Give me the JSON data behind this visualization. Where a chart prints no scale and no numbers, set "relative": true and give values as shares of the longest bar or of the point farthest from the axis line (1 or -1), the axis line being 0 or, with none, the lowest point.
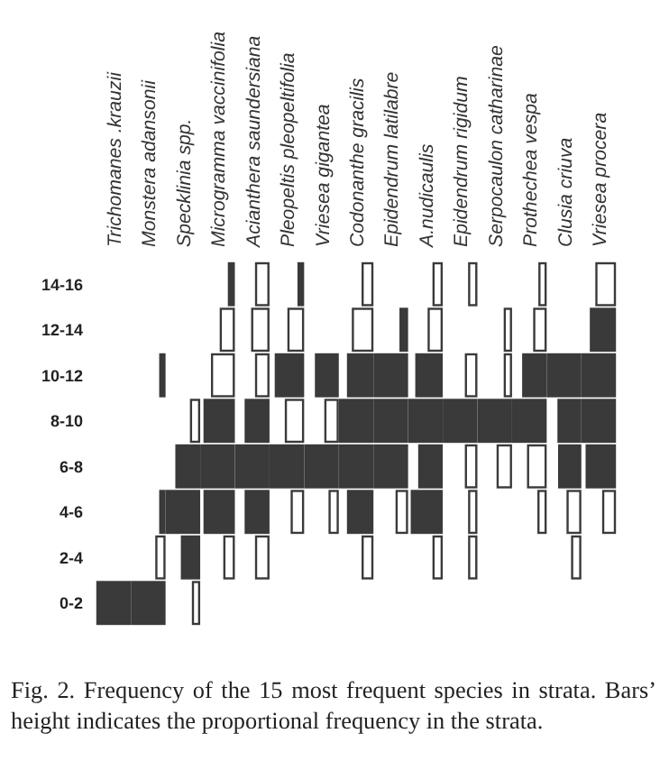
{
  "chart_data": [
    {
      "type": "bar",
      "orientation": "horizontal",
      "relative": true,
      "tick_labels": "y",
      "title": "Trichomanes .krauzii",
      "categories": [
        "14-16",
        "12-14",
        "10-12",
        "8-10",
        "6-8",
        "4-6",
        "2-4",
        "0-2"
      ],
      "values": [
        null,
        null,
        null,
        null,
        null,
        null,
        null,
        1
      ],
      "colors": [
        null,
        null,
        null,
        null,
        null,
        null,
        null,
        "#3a3a3a"
      ],
      "annotations": [
        "Fig. 2. Frequency of the 15 most frequent species in strata. Bars’ height indicates the proportional frequency in the strata."
      ]
    },
    {
      "type": "bar",
      "orientation": "horizontal",
      "relative": true,
      "tick_labels": false,
      "title": "Monstera adansonii",
      "categories": [
        "14-16",
        "12-14",
        "10-12",
        "8-10",
        "6-8",
        "4-6",
        "2-4",
        "0-2"
      ],
      "values": [
        null,
        null,
        0.13,
        null,
        null,
        0.13,
        0.25,
        1
      ],
      "colors": [
        null,
        null,
        "#3a3a3a",
        null,
        null,
        "#3a3a3a",
        "#ffffff",
        "#3a3a3a"
      ]
    },
    {
      "type": "bar",
      "orientation": "horizontal",
      "relative": true,
      "tick_labels": false,
      "title": "Specklinia spp.",
      "categories": [
        "14-16",
        "12-14",
        "10-12",
        "8-10",
        "6-8",
        "4-6",
        "2-4",
        "0-2"
      ],
      "values": [
        null,
        null,
        null,
        0.25,
        0.7,
        1,
        0.53,
        0.19
      ],
      "colors": [
        null,
        null,
        null,
        "#ffffff",
        "#3a3a3a",
        "#3a3a3a",
        "#3a3a3a",
        "#ffffff"
      ]
    },
    {
      "type": "bar",
      "orientation": "horizontal",
      "relative": true,
      "tick_labels": false,
      "title": "Microgramma vaccinifolia",
      "categories": [
        "14-16",
        "12-14",
        "10-12",
        "8-10",
        "6-8",
        "4-6",
        "2-4",
        "0-2"
      ],
      "values": [
        0.15,
        0.4,
        0.67,
        0.9,
        1,
        0.9,
        0.29,
        null
      ],
      "colors": [
        "#3a3a3a",
        "#ffffff",
        "#ffffff",
        "#3a3a3a",
        "#3a3a3a",
        "#3a3a3a",
        "#ffffff",
        null
      ]
    },
    {
      "type": "bar",
      "orientation": "horizontal",
      "relative": true,
      "tick_labels": false,
      "title": "Acianthera saundersiana",
      "categories": [
        "14-16",
        "12-14",
        "10-12",
        "8-10",
        "6-8",
        "4-6",
        "2-4",
        "0-2"
      ],
      "values": [
        0.38,
        0.5,
        0.38,
        0.7,
        1,
        0.7,
        0.38,
        null
      ],
      "colors": [
        "#ffffff",
        "#ffffff",
        "#ffffff",
        "#3a3a3a",
        "#3a3a3a",
        "#3a3a3a",
        "#ffffff",
        null
      ]
    },
    {
      "type": "bar",
      "orientation": "horizontal",
      "relative": true,
      "tick_labels": false,
      "title": "Pleopeltis pleopeltifolia",
      "categories": [
        "14-16",
        "12-14",
        "10-12",
        "8-10",
        "6-8",
        "4-6",
        "2-4",
        "0-2"
      ],
      "values": [
        0.14,
        0.45,
        0.84,
        0.53,
        1,
        0.35,
        null,
        null
      ],
      "colors": [
        "#3a3a3a",
        "#ffffff",
        "#3a3a3a",
        "#ffffff",
        "#3a3a3a",
        "#ffffff",
        null,
        null
      ]
    },
    {
      "type": "bar",
      "orientation": "horizontal",
      "relative": true,
      "tick_labels": false,
      "title": "Vriesea gigantea",
      "categories": [
        "14-16",
        "12-14",
        "10-12",
        "8-10",
        "6-8",
        "4-6",
        "2-4",
        "0-2"
      ],
      "values": [
        null,
        null,
        0.67,
        0.38,
        1,
        0.25,
        null,
        null
      ],
      "colors": [
        null,
        null,
        "#3a3a3a",
        "#ffffff",
        "#3a3a3a",
        "#ffffff",
        null,
        null
      ]
    },
    {
      "type": "bar",
      "orientation": "horizontal",
      "relative": true,
      "tick_labels": false,
      "title": "Codonanthe gracilis",
      "categories": [
        "14-16",
        "12-14",
        "10-12",
        "8-10",
        "6-8",
        "4-6",
        "2-4",
        "0-2"
      ],
      "values": [
        0.3,
        0.6,
        0.75,
        1,
        1,
        0.75,
        0.3,
        null
      ],
      "colors": [
        "#ffffff",
        "#ffffff",
        "#3a3a3a",
        "#3a3a3a",
        "#3a3a3a",
        "#3a3a3a",
        "#ffffff",
        null
      ]
    },
    {
      "type": "bar",
      "orientation": "horizontal",
      "relative": true,
      "tick_labels": false,
      "title": "Epidendrum latilabre",
      "categories": [
        "14-16",
        "12-14",
        "10-12",
        "8-10",
        "6-8",
        "4-6",
        "2-4",
        "0-2"
      ],
      "values": [
        null,
        0.2,
        1,
        1,
        1,
        0.32,
        null,
        null
      ],
      "colors": [
        null,
        "#3a3a3a",
        "#3a3a3a",
        "#3a3a3a",
        "#3a3a3a",
        "#ffffff",
        null,
        null
      ]
    },
    {
      "type": "bar",
      "orientation": "horizontal",
      "relative": true,
      "tick_labels": false,
      "title": "A.nudicaulis",
      "categories": [
        "14-16",
        "12-14",
        "10-12",
        "8-10",
        "6-8",
        "4-6",
        "2-4",
        "0-2"
      ],
      "values": [
        0.25,
        0.4,
        0.78,
        1,
        0.69,
        0.92,
        0.25,
        null
      ],
      "colors": [
        "#ffffff",
        "#ffffff",
        "#3a3a3a",
        "#3a3a3a",
        "#3a3a3a",
        "#3a3a3a",
        "#ffffff",
        null
      ]
    },
    {
      "type": "bar",
      "orientation": "horizontal",
      "relative": true,
      "tick_labels": false,
      "title": "Epidendrum rigidum",
      "categories": [
        "14-16",
        "12-14",
        "10-12",
        "8-10",
        "6-8",
        "4-6",
        "2-4",
        "0-2"
      ],
      "values": [
        0.22,
        null,
        0.32,
        1,
        0.32,
        0.22,
        0.22,
        null
      ],
      "colors": [
        "#ffffff",
        null,
        "#ffffff",
        "#3a3a3a",
        "#ffffff",
        "#ffffff",
        "#ffffff",
        null
      ]
    },
    {
      "type": "bar",
      "orientation": "horizontal",
      "relative": true,
      "tick_labels": false,
      "title": "Serpocaulon catharinae",
      "categories": [
        "14-16",
        "12-14",
        "10-12",
        "8-10",
        "6-8",
        "4-6",
        "2-4",
        "0-2"
      ],
      "values": [
        null,
        0.19,
        0.19,
        1,
        0.41,
        null,
        null,
        null
      ],
      "colors": [
        null,
        "#ffffff",
        "#ffffff",
        "#3a3a3a",
        "#ffffff",
        null,
        null,
        null
      ]
    },
    {
      "type": "bar",
      "orientation": "horizontal",
      "relative": true,
      "tick_labels": false,
      "title": "Prothechea vespa",
      "categories": [
        "14-16",
        "12-14",
        "10-12",
        "8-10",
        "6-8",
        "4-6",
        "2-4",
        "0-2"
      ],
      "values": [
        0.19,
        0.35,
        0.69,
        1,
        0.54,
        0.22,
        null,
        null
      ],
      "colors": [
        "#ffffff",
        "#ffffff",
        "#3a3a3a",
        "#3a3a3a",
        "#ffffff",
        "#ffffff",
        null,
        null
      ]
    },
    {
      "type": "bar",
      "orientation": "horizontal",
      "relative": true,
      "tick_labels": false,
      "title": "Clusia criuva",
      "categories": [
        "14-16",
        "12-14",
        "10-12",
        "8-10",
        "6-8",
        "4-6",
        "2-4",
        "0-2"
      ],
      "values": [
        null,
        null,
        1,
        0.67,
        0.65,
        0.39,
        0.25,
        null
      ],
      "colors": [
        null,
        null,
        "#3a3a3a",
        "#3a3a3a",
        "#3a3a3a",
        "#ffffff",
        "#ffffff",
        null
      ]
    },
    {
      "type": "bar",
      "orientation": "horizontal",
      "relative": true,
      "tick_labels": false,
      "title": "Vriesea procera",
      "categories": [
        "14-16",
        "12-14",
        "10-12",
        "8-10",
        "6-8",
        "4-6",
        "2-4",
        "0-2"
      ],
      "values": [
        0.57,
        0.74,
        1,
        1,
        0.87,
        0.36,
        null,
        null
      ],
      "colors": [
        "#ffffff",
        "#3a3a3a",
        "#3a3a3a",
        "#3a3a3a",
        "#3a3a3a",
        "#ffffff",
        null,
        null
      ]
    }
  ]
}
